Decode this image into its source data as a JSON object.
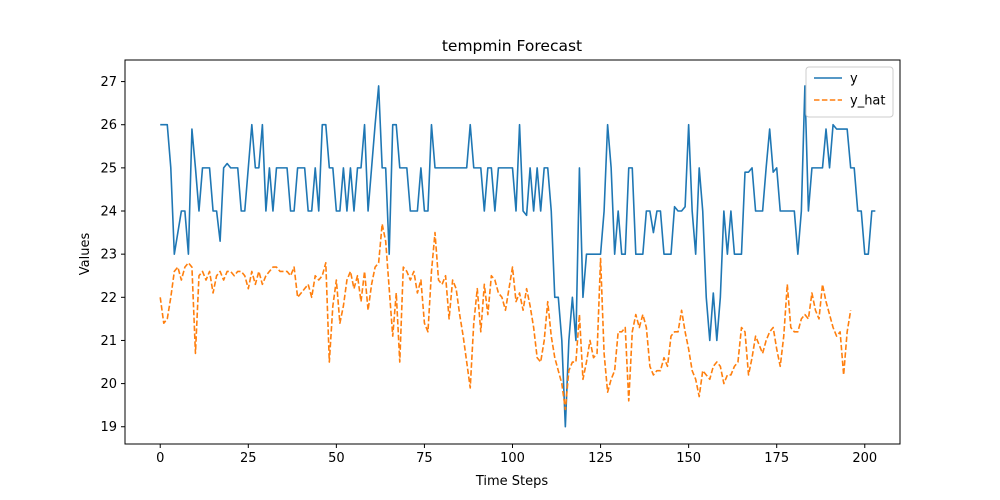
{
  "chart_data": {
    "type": "line",
    "title": "tempmin Forecast",
    "xlabel": "Time Steps",
    "ylabel": "Values",
    "xlim": [
      -10,
      210
    ],
    "ylim": [
      18.6,
      27.5
    ],
    "xticks": [
      0,
      25,
      50,
      75,
      100,
      125,
      150,
      175,
      200
    ],
    "yticks": [
      19,
      20,
      21,
      22,
      23,
      24,
      25,
      26,
      27
    ],
    "legend_position": "top-right",
    "grid": false,
    "series": [
      {
        "name": "y",
        "color": "#1f77b4",
        "style": "solid",
        "values": [
          26,
          26,
          26,
          25,
          23,
          23.5,
          24,
          24,
          23,
          25.9,
          25,
          24,
          25,
          25,
          25,
          24,
          24,
          23.3,
          25,
          25.1,
          25,
          25,
          25,
          24,
          24,
          25,
          26,
          25,
          25,
          26,
          24,
          25,
          24,
          25,
          25,
          25,
          25,
          24,
          24,
          25,
          25,
          25,
          24,
          24,
          25,
          24,
          26,
          26,
          25,
          25,
          24,
          24,
          25,
          24,
          25,
          24,
          25,
          25,
          26,
          24,
          25,
          26,
          26.9,
          25,
          25,
          23,
          26,
          26,
          25,
          25,
          25,
          24,
          24,
          24,
          25,
          24,
          24,
          26,
          25,
          25,
          25,
          25,
          25,
          25,
          25,
          25,
          25,
          25,
          26,
          25,
          25,
          25,
          24,
          25,
          25,
          24,
          25,
          25,
          25,
          25,
          25,
          24,
          26,
          24,
          23.9,
          25,
          24,
          25,
          24,
          25,
          25,
          24,
          22,
          22,
          21,
          19,
          21,
          22,
          21,
          25,
          22,
          23,
          23,
          23,
          23,
          23,
          24,
          26,
          25,
          23,
          24,
          23,
          23,
          25,
          25,
          23,
          23,
          23,
          24,
          24,
          23.5,
          24,
          24,
          23,
          23,
          23,
          24.1,
          24,
          24,
          24.1,
          26,
          24,
          23,
          25,
          24,
          22,
          21,
          22.1,
          21,
          22,
          24,
          23,
          24,
          23,
          23,
          23,
          24.9,
          24.9,
          25,
          24,
          24,
          24,
          25,
          25.9,
          24.9,
          25,
          24,
          24,
          24,
          24,
          24,
          23,
          24,
          26.9,
          24,
          25,
          25,
          25,
          25,
          25.9,
          25,
          26,
          25.9,
          25.9,
          25.9,
          25.9,
          25,
          25,
          24,
          24,
          23,
          23,
          24,
          24
        ]
      },
      {
        "name": "y_hat",
        "color": "#ff7f0e",
        "style": "dashed",
        "values": [
          22,
          21.4,
          21.5,
          22,
          22.6,
          22.7,
          22.4,
          22.7,
          22.8,
          22.7,
          20.7,
          22.5,
          22.6,
          22.4,
          22.6,
          22.1,
          22.5,
          22.6,
          22.4,
          22.6,
          22.6,
          22.5,
          22.6,
          22.6,
          22.5,
          22.2,
          22.6,
          22.3,
          22.6,
          22.3,
          22.5,
          22.6,
          22.7,
          22.7,
          22.6,
          22.6,
          22.6,
          22.5,
          22.7,
          22,
          22.1,
          22.2,
          22.3,
          22,
          22.5,
          22.4,
          22.5,
          22.8,
          20.5,
          21.8,
          22.4,
          21.4,
          21.8,
          22.4,
          22.6,
          22.2,
          22.5,
          21.9,
          22.6,
          21.7,
          22.3,
          22.7,
          22.8,
          23.7,
          23.3,
          22.2,
          21.1,
          22.1,
          20.5,
          22.7,
          22.6,
          22.4,
          22.6,
          22.1,
          22.4,
          21.4,
          21.2,
          22.6,
          23.5,
          22.4,
          22.3,
          22.5,
          21.5,
          22.4,
          22.2,
          21.6,
          21.1,
          20.5,
          19.9,
          21.4,
          22.2,
          21.2,
          22.3,
          21.6,
          22.5,
          22.4,
          22.1,
          22,
          21.7,
          22.2,
          22.7,
          21.9,
          22.1,
          21.7,
          22.2,
          21.8,
          21.3,
          20.6,
          20.5,
          21,
          21.9,
          21.1,
          20.6,
          20.3,
          20,
          19.4,
          20.3,
          20.5,
          20.5,
          21.6,
          20.1,
          20.5,
          21,
          20.6,
          20.7,
          22.9,
          20.7,
          19.8,
          20.1,
          20.3,
          21.2,
          21.2,
          21.3,
          19.6,
          21.2,
          21.6,
          21.3,
          21.6,
          21.3,
          20.4,
          20.2,
          20.3,
          20.3,
          20.6,
          20.4,
          21.1,
          21.2,
          21.2,
          21.7,
          21.2,
          20.8,
          20.3,
          20.1,
          19.7,
          20.3,
          20.2,
          20.1,
          20.4,
          20.5,
          20.4,
          20,
          20.2,
          20.2,
          20.4,
          20.5,
          21.3,
          21.2,
          20.2,
          20.6,
          21.1,
          20.9,
          20.7,
          21,
          21.2,
          21.3,
          20.8,
          20.4,
          21.1,
          22.3,
          21.3,
          21.2,
          21.2,
          21.5,
          21.6,
          21.5,
          22.1,
          21.7,
          21.5,
          22.3,
          21.9,
          21.6,
          21.3,
          21.1,
          21.2,
          20.2,
          21.2,
          21.7
        ]
      }
    ]
  }
}
